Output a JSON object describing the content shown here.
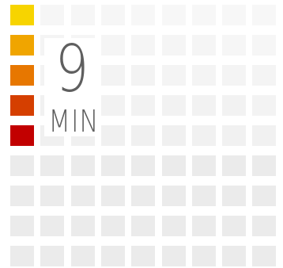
{
  "timer": {
    "value": "9",
    "unit": "MIN"
  },
  "level": {
    "filled_segments": 5,
    "total_segments": 9
  },
  "colors": {
    "grid_base": "#ebebeb",
    "level_segments": [
      "#f7d400",
      "#f0a500",
      "#e77700",
      "#d53f00",
      "#c20000"
    ]
  }
}
